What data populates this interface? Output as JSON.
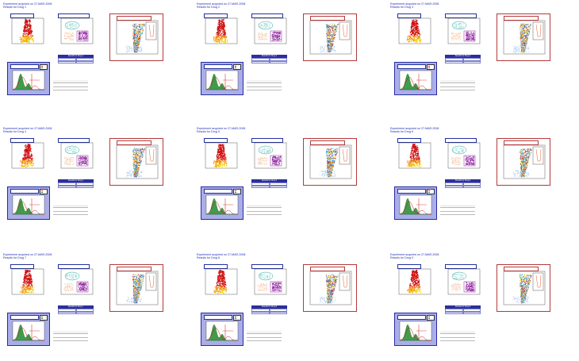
{
  "experiment_line": "Experiment acquired on 27-MAR-2008",
  "reports": [
    {
      "results_line": "Results for Drug 1",
      "table_title": "Results for Drug 1"
    },
    {
      "results_line": "Results for Drug 2",
      "table_title": "Results for Drug 2"
    },
    {
      "results_line": "Results for Drug 3",
      "table_title": "Results for Drug 3"
    },
    {
      "results_line": "Results for Drug 4",
      "table_title": "Results for Drug 4"
    },
    {
      "results_line": "Results for Drug 5",
      "table_title": "Results for Drug 5"
    },
    {
      "results_line": "Results for Drug 6",
      "table_title": "Results for Drug 6"
    },
    {
      "results_line": "Results for Drug 7",
      "table_title": "Results for Drug 7"
    },
    {
      "results_line": "Results for Drug 8",
      "table_title": "Results for Drug 8"
    },
    {
      "results_line": "Results for Drug 9",
      "table_title": "Results for Drug 9"
    }
  ],
  "colors": {
    "title_blue": "#1f2bb5",
    "frame_red": "#b43a3a",
    "hist_bg": "#a9aee8",
    "table_header": "#2b2f9e",
    "density_red": "#d01010",
    "density_orange": "#f08a10",
    "density_yellow": "#f5d300",
    "cluster_purple": "#8a1a9a",
    "cluster_teal": "#2aa39a",
    "hist_green": "#1f8a2a"
  }
}
